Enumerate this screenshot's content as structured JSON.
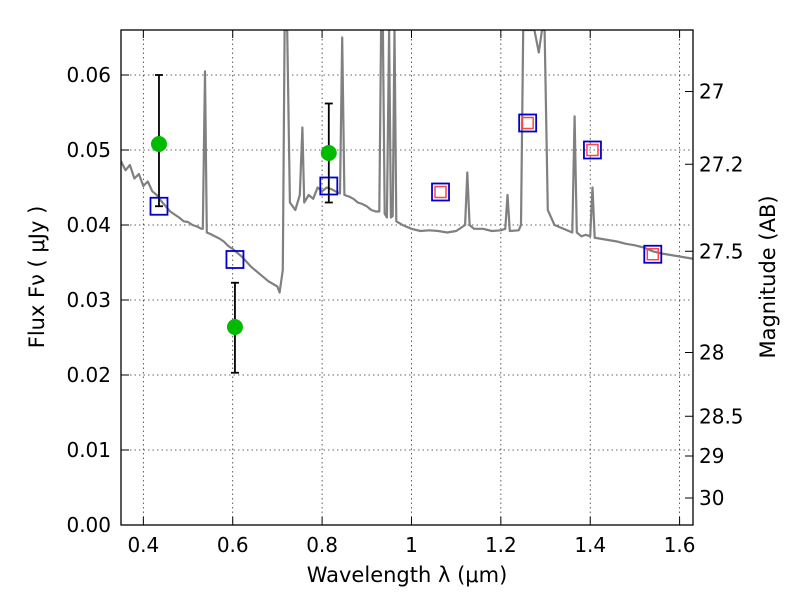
{
  "chart_data": {
    "type": "scatter",
    "title": "",
    "xlabel": "Wavelength  λ (μm)",
    "ylabel": "Flux  Fν  ( μJy )",
    "ylabel_right": "Magnitude (AB)",
    "xlim": [
      0.35,
      1.63
    ],
    "ylim": [
      0.0,
      0.066
    ],
    "grid": true,
    "x_ticks": [
      {
        "value": 0.4,
        "label": "0.4"
      },
      {
        "value": 0.6,
        "label": "0.6"
      },
      {
        "value": 0.8,
        "label": "0.8"
      },
      {
        "value": 1.0,
        "label": "1"
      },
      {
        "value": 1.2,
        "label": "1.2"
      },
      {
        "value": 1.4,
        "label": "1.4"
      },
      {
        "value": 1.6,
        "label": "1.6"
      }
    ],
    "y_ticks": [
      {
        "value": 0.0,
        "label": "0.00"
      },
      {
        "value": 0.01,
        "label": "0.01"
      },
      {
        "value": 0.02,
        "label": "0.02"
      },
      {
        "value": 0.03,
        "label": "0.03"
      },
      {
        "value": 0.04,
        "label": "0.04"
      },
      {
        "value": 0.05,
        "label": "0.05"
      },
      {
        "value": 0.06,
        "label": "0.06"
      }
    ],
    "y_right_ticks": [
      {
        "label": "27",
        "flux": 0.0578
      },
      {
        "label": "27.2",
        "flux": 0.0481
      },
      {
        "label": "27.5",
        "flux": 0.0365
      },
      {
        "label": "28",
        "flux": 0.023
      },
      {
        "label": "28.5",
        "flux": 0.0145
      },
      {
        "label": "29",
        "flux": 0.0092
      },
      {
        "label": "30",
        "flux": 0.0036
      }
    ],
    "series": [
      {
        "type": "line",
        "color": "#808080",
        "points": [
          [
            0.35,
            0.0485
          ],
          [
            0.36,
            0.0473
          ],
          [
            0.37,
            0.048
          ],
          [
            0.38,
            0.0462
          ],
          [
            0.39,
            0.0468
          ],
          [
            0.4,
            0.0452
          ],
          [
            0.41,
            0.0458
          ],
          [
            0.42,
            0.0445
          ],
          [
            0.43,
            0.044
          ],
          [
            0.44,
            0.0432
          ],
          [
            0.45,
            0.0425
          ],
          [
            0.46,
            0.0418
          ],
          [
            0.47,
            0.0414
          ],
          [
            0.48,
            0.041
          ],
          [
            0.49,
            0.0405
          ],
          [
            0.5,
            0.0404
          ],
          [
            0.51,
            0.04
          ],
          [
            0.52,
            0.0398
          ],
          [
            0.53,
            0.0395
          ],
          [
            0.533,
            0.0395
          ],
          [
            0.538,
            0.0605
          ],
          [
            0.542,
            0.039
          ],
          [
            0.55,
            0.0388
          ],
          [
            0.56,
            0.0385
          ],
          [
            0.57,
            0.0382
          ],
          [
            0.58,
            0.0378
          ],
          [
            0.59,
            0.0372
          ],
          [
            0.6,
            0.0368
          ],
          [
            0.62,
            0.0358
          ],
          [
            0.64,
            0.0345
          ],
          [
            0.66,
            0.0335
          ],
          [
            0.68,
            0.0325
          ],
          [
            0.7,
            0.0318
          ],
          [
            0.705,
            0.031
          ],
          [
            0.712,
            0.034
          ],
          [
            0.716,
            0.066
          ],
          [
            0.722,
            0.066
          ],
          [
            0.728,
            0.043
          ],
          [
            0.74,
            0.042
          ],
          [
            0.75,
            0.044
          ],
          [
            0.756,
            0.053
          ],
          [
            0.76,
            0.043
          ],
          [
            0.77,
            0.044
          ],
          [
            0.78,
            0.0435
          ],
          [
            0.79,
            0.045
          ],
          [
            0.8,
            0.0445
          ],
          [
            0.81,
            0.045
          ],
          [
            0.82,
            0.0448
          ],
          [
            0.83,
            0.0445
          ],
          [
            0.84,
            0.0442
          ],
          [
            0.845,
            0.065
          ],
          [
            0.85,
            0.044
          ],
          [
            0.86,
            0.0438
          ],
          [
            0.87,
            0.0435
          ],
          [
            0.88,
            0.043
          ],
          [
            0.89,
            0.0428
          ],
          [
            0.9,
            0.0425
          ],
          [
            0.91,
            0.042
          ],
          [
            0.92,
            0.0418
          ],
          [
            0.928,
            0.0418
          ],
          [
            0.932,
            0.066
          ],
          [
            0.936,
            0.066
          ],
          [
            0.94,
            0.0415
          ],
          [
            0.945,
            0.041
          ],
          [
            0.95,
            0.066
          ],
          [
            0.954,
            0.041
          ],
          [
            0.958,
            0.0412
          ],
          [
            0.962,
            0.066
          ],
          [
            0.966,
            0.0405
          ],
          [
            0.98,
            0.04
          ],
          [
            1.0,
            0.0395
          ],
          [
            1.02,
            0.0392
          ],
          [
            1.04,
            0.0393
          ],
          [
            1.06,
            0.0392
          ],
          [
            1.08,
            0.039
          ],
          [
            1.1,
            0.0392
          ],
          [
            1.12,
            0.04
          ],
          [
            1.125,
            0.047
          ],
          [
            1.13,
            0.04
          ],
          [
            1.14,
            0.0395
          ],
          [
            1.16,
            0.0395
          ],
          [
            1.18,
            0.0392
          ],
          [
            1.2,
            0.0393
          ],
          [
            1.21,
            0.0395
          ],
          [
            1.215,
            0.044
          ],
          [
            1.22,
            0.0392
          ],
          [
            1.24,
            0.0393
          ],
          [
            1.245,
            0.04
          ],
          [
            1.25,
            0.066
          ],
          [
            1.262,
            0.066
          ],
          [
            1.275,
            0.066
          ],
          [
            1.285,
            0.063
          ],
          [
            1.292,
            0.066
          ],
          [
            1.298,
            0.066
          ],
          [
            1.305,
            0.042
          ],
          [
            1.32,
            0.04
          ],
          [
            1.34,
            0.0395
          ],
          [
            1.36,
            0.039
          ],
          [
            1.365,
            0.0545
          ],
          [
            1.37,
            0.039
          ],
          [
            1.38,
            0.0385
          ],
          [
            1.39,
            0.0387
          ],
          [
            1.4,
            0.0385
          ],
          [
            1.405,
            0.045
          ],
          [
            1.41,
            0.0383
          ],
          [
            1.42,
            0.0382
          ],
          [
            1.44,
            0.038
          ],
          [
            1.46,
            0.0378
          ],
          [
            1.48,
            0.0375
          ],
          [
            1.5,
            0.0373
          ],
          [
            1.52,
            0.037
          ],
          [
            1.54,
            0.0365
          ],
          [
            1.56,
            0.0362
          ],
          [
            1.58,
            0.036
          ],
          [
            1.6,
            0.0358
          ],
          [
            1.63,
            0.0355
          ]
        ]
      },
      {
        "type": "errorbar",
        "color": "#000000",
        "points": [
          {
            "x": 0.435,
            "y": 0.0508,
            "low": 0.0425,
            "high": 0.06
          },
          {
            "x": 0.605,
            "y": 0.0264,
            "low": 0.0203,
            "high": 0.0323
          },
          {
            "x": 0.815,
            "y": 0.0496,
            "low": 0.043,
            "high": 0.0562
          }
        ]
      },
      {
        "type": "scatter",
        "marker": "circle",
        "color": "#00bb00",
        "points": [
          [
            0.435,
            0.0508
          ],
          [
            0.605,
            0.0264
          ],
          [
            0.815,
            0.0496
          ]
        ]
      },
      {
        "type": "scatter",
        "marker": "square",
        "color": "#0000cc",
        "points": [
          [
            0.435,
            0.0425
          ],
          [
            0.605,
            0.0354
          ],
          [
            0.815,
            0.0452
          ],
          [
            1.065,
            0.0444
          ],
          [
            1.26,
            0.0536
          ],
          [
            1.405,
            0.05
          ],
          [
            1.54,
            0.0361
          ]
        ]
      },
      {
        "type": "scatter",
        "marker": "square-small",
        "color": "#ff4444",
        "points": [
          [
            1.065,
            0.0444
          ],
          [
            1.26,
            0.0536
          ],
          [
            1.405,
            0.05
          ],
          [
            1.54,
            0.0361
          ]
        ]
      }
    ]
  }
}
